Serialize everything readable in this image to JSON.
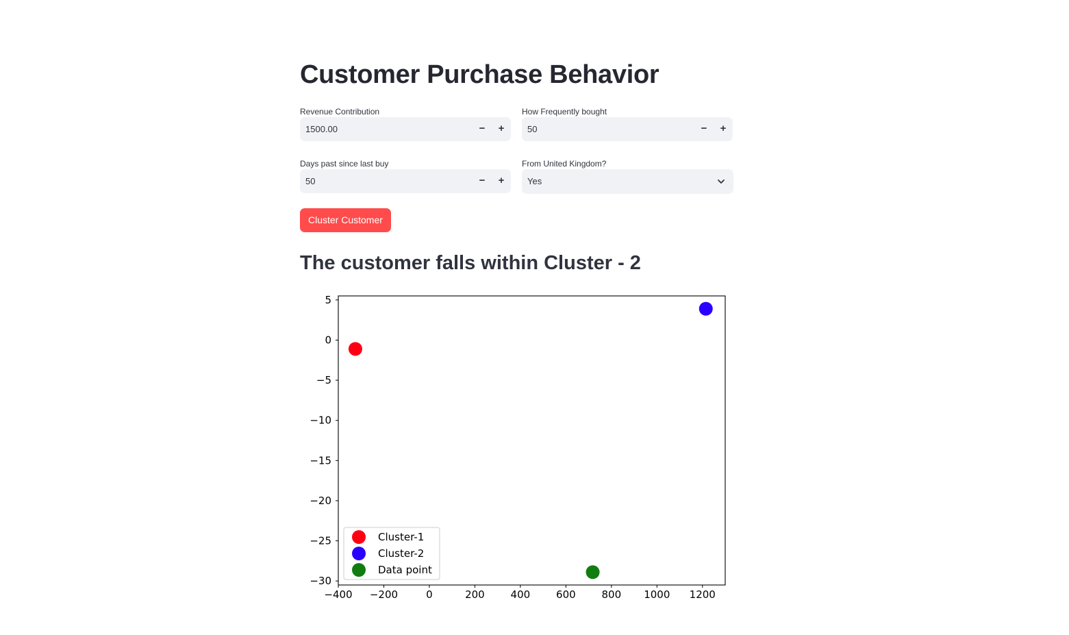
{
  "page": {
    "title": "Customer Purchase Behavior",
    "result": "The customer falls within Cluster - 2"
  },
  "form": {
    "revenue": {
      "label": "Revenue Contribution",
      "value": "1500.00",
      "minus": "−",
      "plus": "+"
    },
    "frequency": {
      "label": "How Frequently bought",
      "value": "50",
      "minus": "−",
      "plus": "+"
    },
    "days": {
      "label": "Days past since last buy",
      "value": "50",
      "minus": "−",
      "plus": "+"
    },
    "uk": {
      "label": "From United Kingdom?",
      "value": "Yes",
      "icon": "chevron-down-icon"
    },
    "button": "Cluster Customer"
  },
  "chart_data": {
    "type": "scatter",
    "title": "",
    "xlabel": "",
    "ylabel": "",
    "xlim": [
      -400,
      1300
    ],
    "ylim": [
      -30.5,
      5.5
    ],
    "xticks": [
      -400,
      -200,
      0,
      200,
      400,
      600,
      800,
      1000,
      1200
    ],
    "yticks": [
      5,
      0,
      -5,
      -10,
      -15,
      -20,
      -25,
      -30
    ],
    "xtick_labels": [
      "−400",
      "−200",
      "0",
      "200",
      "400",
      "600",
      "800",
      "1000",
      "1200"
    ],
    "ytick_labels": [
      "5",
      "0",
      "−5",
      "−10",
      "−15",
      "−20",
      "−25",
      "−30"
    ],
    "legend_position": "lower-left",
    "grid": false,
    "series": [
      {
        "name": "Cluster-1",
        "color": "#ff0012",
        "points": [
          {
            "x": -325,
            "y": -1.1
          }
        ]
      },
      {
        "name": "Cluster-2",
        "color": "#2b00ff",
        "points": [
          {
            "x": 1215,
            "y": 3.9
          }
        ]
      },
      {
        "name": "Data point",
        "color": "#117d11",
        "points": [
          {
            "x": 718,
            "y": -28.9
          }
        ]
      }
    ]
  }
}
